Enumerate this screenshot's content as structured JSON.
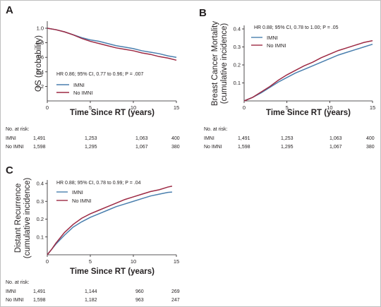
{
  "colors": {
    "imni": "#4a7fae",
    "no_imni": "#9d2a44",
    "text": "#231f20"
  },
  "chart_data": [
    {
      "panel": "A",
      "type": "line",
      "ylabel": "OS (probability)",
      "xlabel": "Time Since RT (years)",
      "xlim": [
        0,
        15
      ],
      "ylim": [
        0,
        1.0
      ],
      "xticks": [
        "0",
        "5",
        "10",
        "15"
      ],
      "yticks": [
        "0.2",
        "0.4",
        "0.6",
        "0.8",
        "1.0"
      ],
      "annotation": "HR 0.86; 95% CI, 0.77 to 0.96; P = .007",
      "legend": [
        "IMNI",
        "No IMNI"
      ],
      "series": [
        {
          "name": "IMNI",
          "x": [
            0,
            1,
            2,
            3,
            4,
            5,
            6,
            7,
            8,
            9,
            10,
            11,
            12,
            13,
            14,
            15
          ],
          "values": [
            1.0,
            0.98,
            0.95,
            0.91,
            0.87,
            0.84,
            0.82,
            0.79,
            0.76,
            0.74,
            0.72,
            0.69,
            0.67,
            0.65,
            0.62,
            0.6
          ]
        },
        {
          "name": "No IMNI",
          "x": [
            0,
            1,
            2,
            3,
            4,
            5,
            6,
            7,
            8,
            9,
            10,
            11,
            12,
            13,
            14,
            15
          ],
          "values": [
            1.0,
            0.98,
            0.95,
            0.91,
            0.86,
            0.82,
            0.79,
            0.76,
            0.73,
            0.71,
            0.69,
            0.66,
            0.64,
            0.61,
            0.59,
            0.56
          ]
        }
      ],
      "risk": {
        "header": "No. at risk:",
        "rows": [
          {
            "label": "IMNI",
            "values": [
              "1,491",
              "1,253",
              "1,063",
              "400"
            ]
          },
          {
            "label": "No IMNI",
            "values": [
              "1,598",
              "1,295",
              "1,067",
              "380"
            ]
          }
        ]
      }
    },
    {
      "panel": "B",
      "type": "line",
      "ylabel": "Breast Cancer Mortality (cumulative incidence)",
      "ylabel_lines": [
        "Breast Cancer Mortality",
        "(cumulative incidence)"
      ],
      "xlabel": "Time Since RT (years)",
      "xlim": [
        0,
        15
      ],
      "ylim": [
        0,
        0.4
      ],
      "xticks": [
        "0",
        "5",
        "10",
        "15"
      ],
      "yticks": [
        "0.1",
        "0.2",
        "0.3",
        "0.4"
      ],
      "annotation": "HR 0.88; 95% CI, 0.78 to 1.00; P = .05",
      "legend": [
        "IMNI",
        "No IMNI"
      ],
      "series": [
        {
          "name": "IMNI",
          "x": [
            0,
            1,
            2,
            3,
            4,
            5,
            6,
            7,
            8,
            9,
            10,
            11,
            12,
            13,
            14,
            15
          ],
          "values": [
            0.0,
            0.02,
            0.045,
            0.075,
            0.105,
            0.13,
            0.155,
            0.175,
            0.195,
            0.215,
            0.235,
            0.255,
            0.27,
            0.285,
            0.3,
            0.315
          ]
        },
        {
          "name": "No IMNI",
          "x": [
            0,
            1,
            2,
            3,
            4,
            5,
            6,
            7,
            8,
            9,
            10,
            11,
            12,
            13,
            14,
            15
          ],
          "values": [
            0.0,
            0.02,
            0.05,
            0.08,
            0.115,
            0.145,
            0.17,
            0.195,
            0.215,
            0.24,
            0.26,
            0.28,
            0.295,
            0.31,
            0.325,
            0.335
          ]
        }
      ],
      "risk": {
        "header": "No. at risk:",
        "rows": [
          {
            "label": "IMNI",
            "values": [
              "1,491",
              "1,253",
              "1,063",
              "400"
            ]
          },
          {
            "label": "No IMNI",
            "values": [
              "1,598",
              "1,295",
              "1,067",
              "380"
            ]
          }
        ]
      }
    },
    {
      "panel": "C",
      "type": "line",
      "ylabel": "Distant Recurrence (cumulative incidence)",
      "ylabel_lines": [
        "Distant Recurrence",
        "(cumulative incidence)"
      ],
      "xlabel": "Time Since RT (years)",
      "xlim": [
        0,
        15
      ],
      "ylim": [
        0,
        0.4
      ],
      "xticks": [
        "0",
        "5",
        "10",
        "15"
      ],
      "yticks": [
        "0.1",
        "0.2",
        "0.3",
        "0.4"
      ],
      "annotation": "HR 0.88; 95% CI, 0.78 to 0.99; P = .04",
      "legend": [
        "IMNI",
        "No IMNI"
      ],
      "series": [
        {
          "name": "IMNI",
          "x": [
            0,
            0.5,
            1,
            1.5,
            2,
            3,
            4,
            5,
            6,
            7,
            8,
            9,
            10,
            11,
            12,
            13,
            14,
            14.5
          ],
          "values": [
            0.0,
            0.03,
            0.06,
            0.085,
            0.11,
            0.155,
            0.185,
            0.21,
            0.23,
            0.25,
            0.27,
            0.285,
            0.3,
            0.315,
            0.33,
            0.34,
            0.35,
            0.352
          ]
        },
        {
          "name": "No IMNI",
          "x": [
            0,
            0.5,
            1,
            1.5,
            2,
            3,
            4,
            5,
            6,
            7,
            8,
            9,
            10,
            11,
            12,
            13,
            14,
            14.5
          ],
          "values": [
            0.0,
            0.03,
            0.065,
            0.095,
            0.125,
            0.17,
            0.205,
            0.23,
            0.25,
            0.27,
            0.29,
            0.31,
            0.325,
            0.34,
            0.355,
            0.365,
            0.38,
            0.385
          ]
        }
      ],
      "risk": {
        "header": "No. at risk:",
        "rows": [
          {
            "label": "IMNI",
            "values": [
              "1,491",
              "1,144",
              "960",
              "269"
            ]
          },
          {
            "label": "No IMNI",
            "values": [
              "1,598",
              "1,182",
              "963",
              "247"
            ]
          }
        ]
      }
    }
  ]
}
